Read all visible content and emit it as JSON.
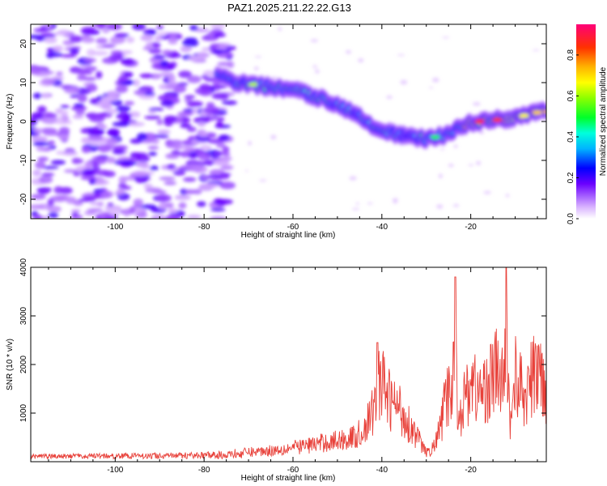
{
  "title": "PAZ1.2025.211.22.22.G13",
  "chart_data": [
    {
      "type": "heatmap",
      "xlabel": "Height of straight line (km)",
      "ylabel": "Frequency (Hz)",
      "xlim": [
        -119,
        -3
      ],
      "ylim": [
        -25,
        25
      ],
      "xticks": [
        -100,
        -80,
        -60,
        -40,
        -20
      ],
      "yticks": [
        -20,
        -10,
        0,
        10,
        20
      ],
      "ridge": {
        "x": [
          -77,
          -73,
          -70,
          -66,
          -62,
          -58,
          -54,
          -50,
          -46,
          -42,
          -38,
          -34,
          -30,
          -26,
          -22,
          -18,
          -14,
          -10,
          -6,
          -3
        ],
        "y": [
          12,
          10,
          9.5,
          9,
          8.5,
          7.5,
          6,
          4.5,
          2,
          -1,
          -3,
          -4,
          -4.5,
          -3.5,
          -1,
          0,
          0.5,
          1,
          2,
          3
        ]
      },
      "colorbar": {
        "label": "Normalized spectral amplitude",
        "range": [
          0,
          0.95
        ],
        "ticks": [
          0.0,
          0.2,
          0.4,
          0.6,
          0.8
        ]
      }
    },
    {
      "type": "line",
      "xlabel": "Height of straight line (km)",
      "ylabel": "SNR (10 * v/v)",
      "xlim": [
        -119,
        -3
      ],
      "ylim": [
        0,
        4000
      ],
      "xticks": [
        -100,
        -80,
        -60,
        -40,
        -20
      ],
      "yticks": [
        1000,
        2000,
        3000,
        4000
      ],
      "line_color": "#e8413a",
      "envelope": {
        "x": [
          -119,
          -100,
          -80,
          -75,
          -70,
          -65,
          -60,
          -55,
          -50,
          -46,
          -44,
          -42,
          -41,
          -40,
          -38,
          -36,
          -34,
          -32,
          -30,
          -29,
          -28,
          -27,
          -26,
          -25,
          -24,
          -23.5,
          -23,
          -22,
          -20,
          -18,
          -16,
          -14,
          -12.5,
          -12,
          -11.5,
          -11,
          -10,
          -8,
          -6,
          -4,
          -3
        ],
        "y": [
          110,
          130,
          150,
          200,
          270,
          320,
          400,
          500,
          600,
          700,
          900,
          1400,
          2400,
          2200,
          1700,
          1500,
          1100,
          700,
          250,
          300,
          500,
          900,
          1500,
          1900,
          2200,
          3800,
          1400,
          1500,
          2300,
          1900,
          2200,
          2600,
          2000,
          4000,
          1800,
          1100,
          2500,
          1800,
          2400,
          2600,
          1900
        ]
      }
    }
  ]
}
